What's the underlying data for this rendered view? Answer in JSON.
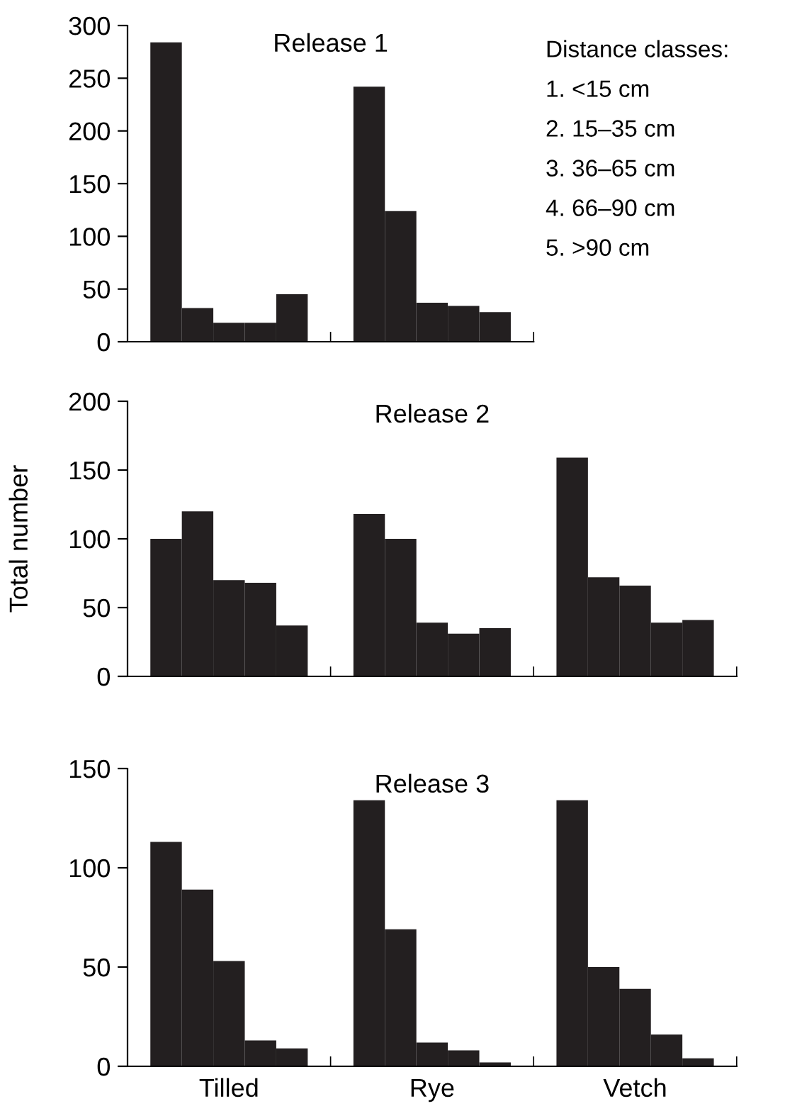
{
  "chart_data": [
    {
      "type": "bar",
      "title": "Release 1",
      "categories": [
        null,
        null
      ],
      "tick_labels": "y",
      "ylim": [
        0,
        300
      ],
      "yticks": [
        0,
        50,
        100,
        150,
        200,
        250,
        300
      ],
      "grid": false,
      "legend": false,
      "series": [
        {
          "color": "#231f20",
          "values": [
            284,
            242
          ]
        },
        {
          "color": "#231f20",
          "values": [
            32,
            124
          ]
        },
        {
          "color": "#231f20",
          "values": [
            18,
            37
          ]
        },
        {
          "color": "#231f20",
          "values": [
            18,
            34
          ]
        },
        {
          "color": "#231f20",
          "values": [
            45,
            28
          ]
        }
      ],
      "annotations": [
        "Distance classes:",
        "1. <15 cm",
        "2. 15–35 cm",
        "3. 36–65 cm",
        "4. 66–90 cm",
        "5. >90 cm"
      ]
    },
    {
      "type": "bar",
      "title": "Release 2",
      "ylabel": "Total number",
      "categories": [
        null,
        null,
        null
      ],
      "tick_labels": "y",
      "ylim": [
        0,
        200
      ],
      "yticks": [
        0,
        50,
        100,
        150,
        200
      ],
      "grid": false,
      "legend": false,
      "series": [
        {
          "color": "#231f20",
          "values": [
            100,
            118,
            159
          ]
        },
        {
          "color": "#231f20",
          "values": [
            120,
            100,
            72
          ]
        },
        {
          "color": "#231f20",
          "values": [
            70,
            39,
            66
          ]
        },
        {
          "color": "#231f20",
          "values": [
            68,
            31,
            39
          ]
        },
        {
          "color": "#231f20",
          "values": [
            37,
            35,
            41
          ]
        }
      ]
    },
    {
      "type": "bar",
      "title": "Release 3",
      "categories": [
        "Tilled",
        "Rye",
        "Vetch"
      ],
      "ylim": [
        0,
        150
      ],
      "yticks": [
        0,
        50,
        100,
        150
      ],
      "grid": false,
      "legend": false,
      "series": [
        {
          "color": "#231f20",
          "values": [
            113,
            134,
            134
          ]
        },
        {
          "color": "#231f20",
          "values": [
            89,
            69,
            50
          ]
        },
        {
          "color": "#231f20",
          "values": [
            53,
            12,
            39
          ]
        },
        {
          "color": "#231f20",
          "values": [
            13,
            8,
            16
          ]
        },
        {
          "color": "#231f20",
          "values": [
            9,
            2,
            4
          ]
        }
      ]
    }
  ]
}
